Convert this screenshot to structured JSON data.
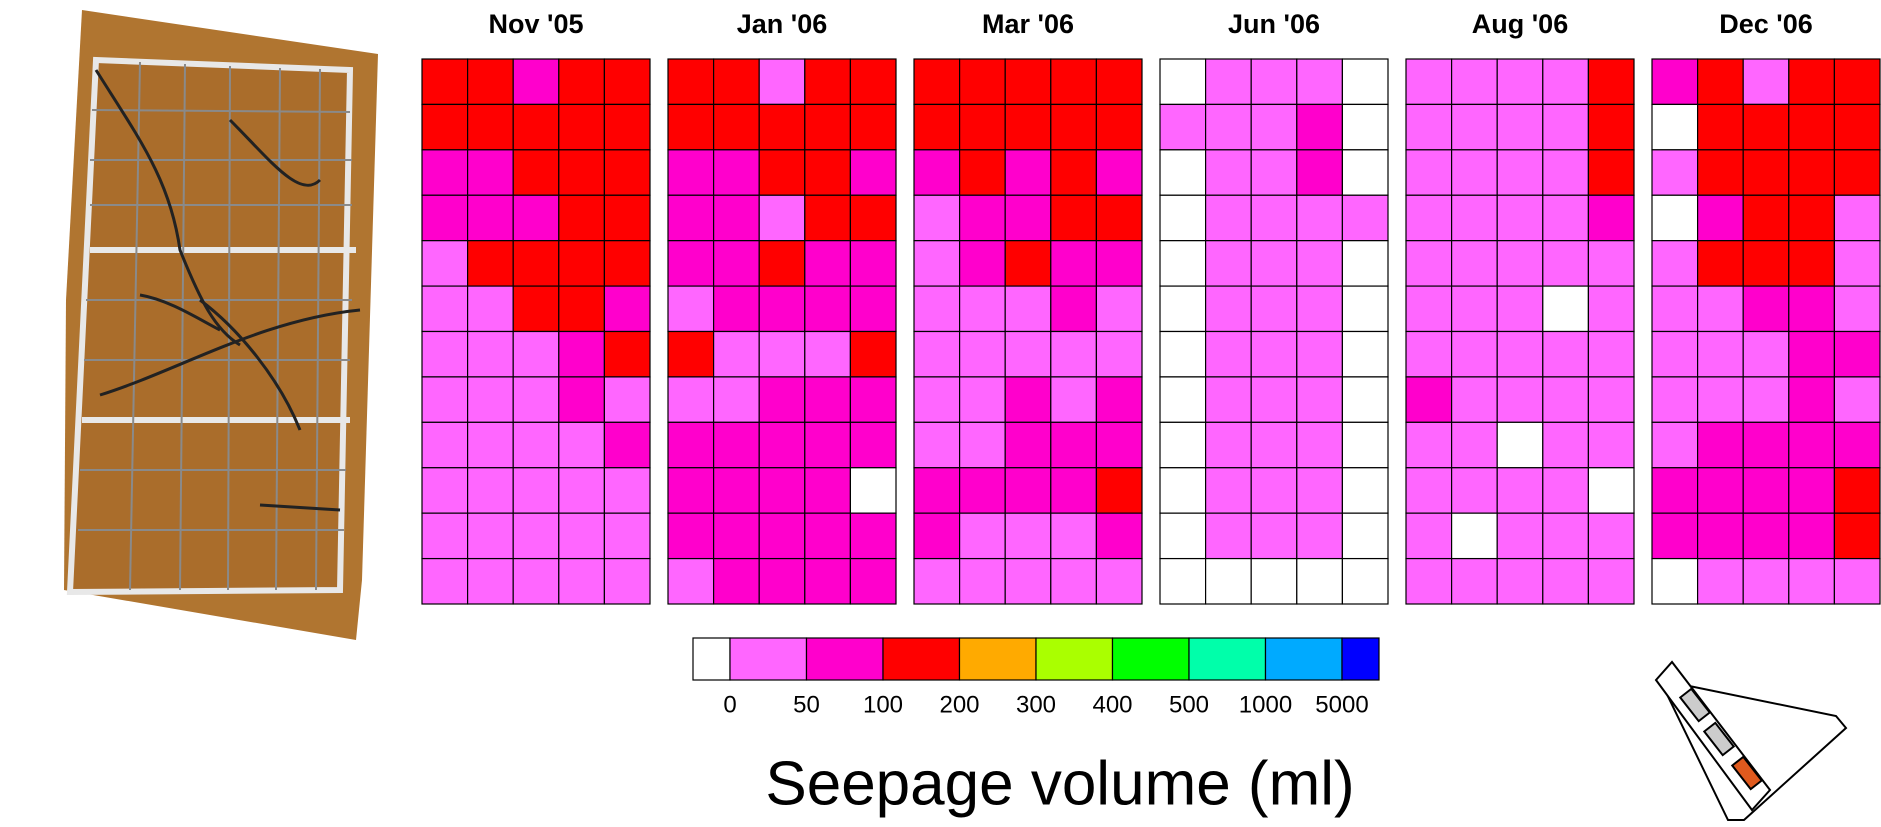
{
  "chart_data": {
    "type": "heatmap",
    "title": "Seepage volume (ml)",
    "panels": [
      {
        "title": "Nov '05",
        "values": [
          [
            150,
            150,
            75,
            150,
            150
          ],
          [
            150,
            150,
            150,
            150,
            150
          ],
          [
            75,
            75,
            150,
            150,
            150
          ],
          [
            75,
            75,
            75,
            150,
            150
          ],
          [
            25,
            150,
            150,
            150,
            150
          ],
          [
            25,
            25,
            150,
            150,
            75
          ],
          [
            25,
            25,
            25,
            75,
            150
          ],
          [
            25,
            25,
            25,
            75,
            25
          ],
          [
            25,
            25,
            25,
            25,
            75
          ],
          [
            25,
            25,
            25,
            25,
            25
          ],
          [
            25,
            25,
            25,
            25,
            25
          ],
          [
            25,
            25,
            25,
            25,
            25
          ]
        ]
      },
      {
        "title": "Jan '06",
        "values": [
          [
            150,
            150,
            25,
            150,
            150
          ],
          [
            150,
            150,
            150,
            150,
            150
          ],
          [
            75,
            75,
            150,
            150,
            75
          ],
          [
            75,
            75,
            25,
            150,
            150
          ],
          [
            75,
            75,
            150,
            75,
            75
          ],
          [
            25,
            75,
            75,
            75,
            75
          ],
          [
            150,
            25,
            25,
            25,
            150
          ],
          [
            25,
            25,
            75,
            75,
            75
          ],
          [
            75,
            75,
            75,
            75,
            75
          ],
          [
            75,
            75,
            75,
            75,
            null
          ],
          [
            75,
            75,
            75,
            75,
            75
          ],
          [
            25,
            75,
            75,
            75,
            75
          ]
        ]
      },
      {
        "title": "Mar '06",
        "values": [
          [
            150,
            150,
            150,
            150,
            150
          ],
          [
            150,
            150,
            150,
            150,
            150
          ],
          [
            75,
            150,
            75,
            150,
            75
          ],
          [
            25,
            75,
            75,
            150,
            150
          ],
          [
            25,
            75,
            150,
            75,
            75
          ],
          [
            25,
            25,
            25,
            75,
            25
          ],
          [
            25,
            25,
            25,
            25,
            25
          ],
          [
            25,
            25,
            75,
            25,
            75
          ],
          [
            25,
            25,
            75,
            75,
            75
          ],
          [
            75,
            75,
            75,
            75,
            150
          ],
          [
            75,
            25,
            25,
            25,
            75
          ],
          [
            25,
            25,
            25,
            25,
            25
          ]
        ]
      },
      {
        "title": "Jun '06",
        "values": [
          [
            null,
            25,
            25,
            25,
            null
          ],
          [
            25,
            25,
            25,
            75,
            null
          ],
          [
            null,
            25,
            25,
            75,
            null
          ],
          [
            null,
            25,
            25,
            25,
            25
          ],
          [
            null,
            25,
            25,
            25,
            null
          ],
          [
            null,
            25,
            25,
            25,
            null
          ],
          [
            null,
            25,
            25,
            25,
            null
          ],
          [
            null,
            25,
            25,
            25,
            null
          ],
          [
            null,
            25,
            25,
            25,
            null
          ],
          [
            null,
            25,
            25,
            25,
            null
          ],
          [
            null,
            25,
            25,
            25,
            null
          ],
          [
            null,
            null,
            null,
            null,
            null
          ]
        ]
      },
      {
        "title": "Aug '06",
        "values": [
          [
            25,
            25,
            25,
            25,
            150
          ],
          [
            25,
            25,
            25,
            25,
            150
          ],
          [
            25,
            25,
            25,
            25,
            150
          ],
          [
            25,
            25,
            25,
            25,
            75
          ],
          [
            25,
            25,
            25,
            25,
            25
          ],
          [
            25,
            25,
            25,
            null,
            25
          ],
          [
            25,
            25,
            25,
            25,
            25
          ],
          [
            75,
            25,
            25,
            25,
            25
          ],
          [
            25,
            25,
            null,
            25,
            25
          ],
          [
            25,
            25,
            25,
            25,
            null
          ],
          [
            25,
            null,
            25,
            25,
            25
          ],
          [
            25,
            25,
            25,
            25,
            25
          ]
        ]
      },
      {
        "title": "Dec '06",
        "values": [
          [
            75,
            150,
            25,
            150,
            150
          ],
          [
            null,
            150,
            150,
            150,
            150
          ],
          [
            25,
            150,
            150,
            150,
            150
          ],
          [
            null,
            75,
            150,
            150,
            25
          ],
          [
            25,
            150,
            150,
            150,
            25
          ],
          [
            25,
            25,
            75,
            75,
            25
          ],
          [
            25,
            25,
            25,
            75,
            75
          ],
          [
            25,
            25,
            25,
            75,
            25
          ],
          [
            25,
            75,
            75,
            75,
            75
          ],
          [
            75,
            75,
            75,
            75,
            150
          ],
          [
            75,
            75,
            75,
            75,
            150
          ],
          [
            null,
            25,
            25,
            25,
            25
          ]
        ]
      }
    ],
    "colorbar": {
      "colors": [
        "#ffffff",
        "#ff66ff",
        "#ff00cc",
        "#ff0000",
        "#ffaa00",
        "#aaff00",
        "#00ff00",
        "#00ffaa",
        "#00aaff",
        "#0000ff"
      ],
      "ticks": [
        0,
        50,
        100,
        200,
        300,
        400,
        500,
        1000,
        5000
      ]
    }
  }
}
